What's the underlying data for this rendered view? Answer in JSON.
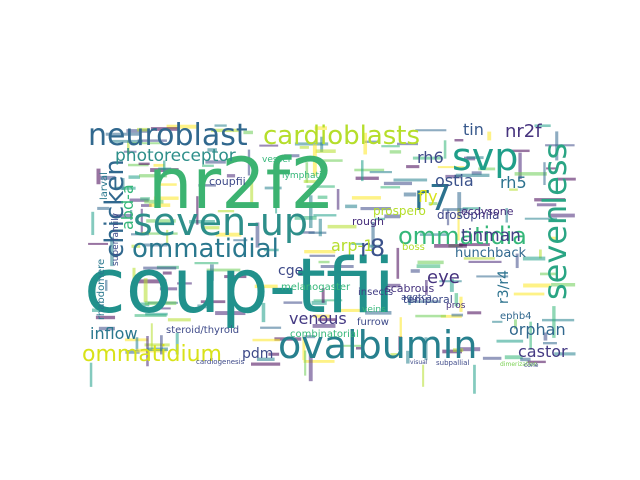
{
  "words": [
    {
      "text": "coup-tfii",
      "color": "#21918c"
    },
    {
      "text": "nr2f2",
      "color": "#3cb371"
    },
    {
      "text": "seven-up",
      "color": "#2e8f8a"
    },
    {
      "text": "svp",
      "color": "#1f9e89"
    },
    {
      "text": "ovalbumin",
      "color": "#27808e"
    },
    {
      "text": "sevenless",
      "color": "#2aa584"
    },
    {
      "text": "neuroblast",
      "color": "#31688e"
    },
    {
      "text": "cardioblasts",
      "color": "#b5de2b"
    },
    {
      "text": "r7",
      "color": "#2c728e"
    },
    {
      "text": "chicken",
      "color": "#31688e"
    },
    {
      "text": "ommatidial",
      "color": "#2a788e"
    },
    {
      "text": "ommatidia",
      "color": "#35b779"
    },
    {
      "text": "ommatidium",
      "color": "#d8e219"
    },
    {
      "text": "r8",
      "color": "#3b528b"
    },
    {
      "text": "photoreceptor",
      "color": "#2e8f8a"
    },
    {
      "text": "nr2f",
      "color": "#46337e"
    },
    {
      "text": "tin",
      "color": "#38598c"
    },
    {
      "text": "rh6",
      "color": "#3e4a89"
    },
    {
      "text": "rh5",
      "color": "#2c728e"
    },
    {
      "text": "ostia",
      "color": "#3b528b"
    },
    {
      "text": "fly",
      "color": "#d8e219"
    },
    {
      "text": "tinman",
      "color": "#433e85"
    },
    {
      "text": "hunchback",
      "color": "#31688e"
    },
    {
      "text": "arp-1",
      "color": "#b5de2b"
    },
    {
      "text": "eye",
      "color": "#46337e"
    },
    {
      "text": "abd-a",
      "color": "#35b779"
    },
    {
      "text": "venous",
      "color": "#443983"
    },
    {
      "text": "r3/r4",
      "color": "#2c728e"
    },
    {
      "text": "orphan",
      "color": "#31688e"
    },
    {
      "text": "castor",
      "color": "#443983"
    },
    {
      "text": "inflow",
      "color": "#2a788e"
    },
    {
      "text": "pdm",
      "color": "#3e4a89"
    },
    {
      "text": "cge",
      "color": "#3e4a89"
    },
    {
      "text": "drosophila",
      "color": "#404688"
    },
    {
      "text": "ecdysone",
      "color": "#472d7b"
    },
    {
      "text": "coupfii",
      "color": "#3e4a89"
    },
    {
      "text": "prospero",
      "color": "#b5de2b"
    },
    {
      "text": "steroid/thyroid",
      "color": "#3e4a89"
    },
    {
      "text": "temporal",
      "color": "#3e4a89"
    },
    {
      "text": "rough",
      "color": "#472d7b"
    },
    {
      "text": "insects",
      "color": "#433e85"
    },
    {
      "text": "melanogaster",
      "color": "#35b779"
    },
    {
      "text": "furrow",
      "color": "#3e4a89"
    },
    {
      "text": "scabrous",
      "color": "#46337e"
    },
    {
      "text": "combinatorial",
      "color": "#35b779"
    },
    {
      "text": "ephb4",
      "color": "#31688e"
    },
    {
      "text": "boss",
      "color": "#b5de2b"
    },
    {
      "text": "rhabdomere",
      "color": "#2a788e"
    },
    {
      "text": "superfamily",
      "color": "#3e4a89"
    },
    {
      "text": "larval",
      "color": "#2a788e"
    },
    {
      "text": "lymphatic",
      "color": "#35b779"
    },
    {
      "text": "vessel",
      "color": "#35b779"
    },
    {
      "text": "veins",
      "color": "#35b779"
    },
    {
      "text": "aggtca",
      "color": "#3e4a89"
    },
    {
      "text": "pros",
      "color": "#46337e"
    },
    {
      "text": "cardiogenesis",
      "color": "#3e4a89"
    },
    {
      "text": "subpallial",
      "color": "#3e4a89"
    },
    {
      "text": "visual",
      "color": "#3e4a89"
    },
    {
      "text": "dimerization",
      "color": "#7ad151"
    },
    {
      "text": "cone",
      "color": "#3e4a89"
    }
  ]
}
